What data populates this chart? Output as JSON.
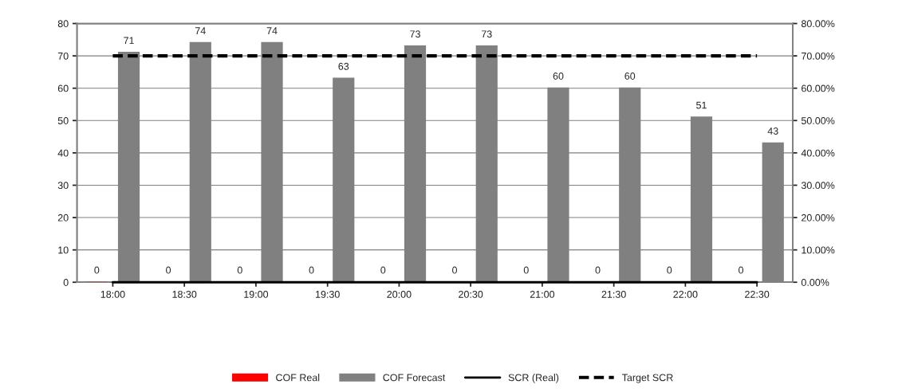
{
  "chart_data": {
    "type": "bar",
    "categories": [
      "18:00",
      "18:30",
      "19:00",
      "19:30",
      "20:00",
      "20:30",
      "21:00",
      "21:30",
      "22:00",
      "22:30"
    ],
    "series": [
      {
        "name": "COF Real",
        "color": "#ff0000",
        "values": [
          0,
          0,
          0,
          0,
          0,
          0,
          0,
          0,
          0,
          0
        ],
        "value_labels": [
          "0",
          "0",
          "0",
          "0",
          "0",
          "0",
          "0",
          "0",
          "0",
          "0"
        ]
      },
      {
        "name": "COF Forecast",
        "color": "#808080",
        "values": [
          71,
          74,
          74,
          63,
          73,
          73,
          60,
          60,
          51,
          43
        ],
        "value_labels": [
          "71",
          "74",
          "74",
          "63",
          "73",
          "73",
          "60",
          "60",
          "51",
          "43"
        ]
      },
      {
        "name": "SCR (Real)",
        "type": "line",
        "axis": "y2",
        "color": "#000000",
        "line_style": "solid",
        "values": [
          0,
          0,
          0,
          0,
          0,
          0,
          0,
          0,
          0,
          0
        ]
      },
      {
        "name": "Target SCR",
        "type": "line",
        "axis": "y2",
        "color": "#000000",
        "line_style": "dashed",
        "values": [
          70,
          70,
          70,
          70,
          70,
          70,
          70,
          70,
          70,
          70
        ]
      }
    ],
    "ylim": [
      0,
      80
    ],
    "yticks": [
      0,
      10,
      20,
      30,
      40,
      50,
      60,
      70,
      80
    ],
    "y2lim": [
      0,
      80
    ],
    "y2ticks": [
      {
        "value": 0,
        "label": "0.00%"
      },
      {
        "value": 10,
        "label": "10.00%"
      },
      {
        "value": 20,
        "label": "20.00%"
      },
      {
        "value": 30,
        "label": "30.00%"
      },
      {
        "value": 40,
        "label": "40.00%"
      },
      {
        "value": 50,
        "label": "50.00%"
      },
      {
        "value": 60,
        "label": "60.00%"
      },
      {
        "value": 70,
        "label": "70.00%"
      },
      {
        "value": 80,
        "label": "80.00%"
      }
    ],
    "grid": "y",
    "legend": "bottom",
    "marker": "none"
  }
}
